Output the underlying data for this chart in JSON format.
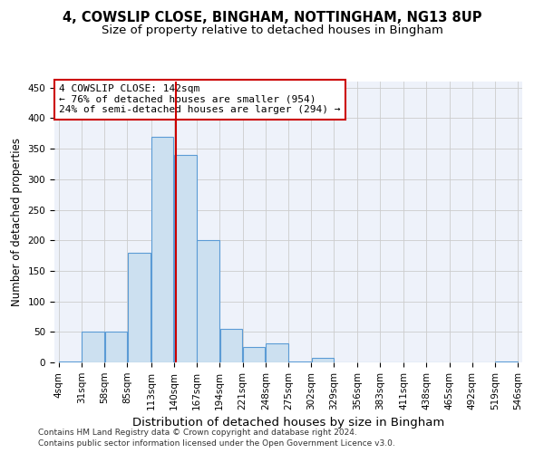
{
  "title_line1": "4, COWSLIP CLOSE, BINGHAM, NOTTINGHAM, NG13 8UP",
  "title_line2": "Size of property relative to detached houses in Bingham",
  "xlabel": "Distribution of detached houses by size in Bingham",
  "ylabel": "Number of detached properties",
  "bin_labels": [
    "4sqm",
    "31sqm",
    "58sqm",
    "85sqm",
    "113sqm",
    "140sqm",
    "167sqm",
    "194sqm",
    "221sqm",
    "248sqm",
    "275sqm",
    "302sqm",
    "329sqm",
    "356sqm",
    "383sqm",
    "411sqm",
    "438sqm",
    "465sqm",
    "492sqm",
    "519sqm",
    "546sqm"
  ],
  "bar_values": [
    2,
    50,
    50,
    180,
    370,
    340,
    200,
    55,
    25,
    31,
    2,
    7,
    0,
    0,
    0,
    0,
    0,
    0,
    0,
    2
  ],
  "bin_edges": [
    4,
    31,
    58,
    85,
    113,
    140,
    167,
    194,
    221,
    248,
    275,
    302,
    329,
    356,
    383,
    411,
    438,
    465,
    492,
    519,
    546
  ],
  "bar_facecolor": "#cce0f0",
  "bar_edgecolor": "#5b9bd5",
  "property_line_x": 142,
  "property_line_color": "#cc0000",
  "annotation_line1": "4 COWSLIP CLOSE: 142sqm",
  "annotation_line2": "← 76% of detached houses are smaller (954)",
  "annotation_line3": "24% of semi-detached houses are larger (294) →",
  "annotation_box_color": "#cc0000",
  "grid_color": "#cccccc",
  "background_color": "#eef2fa",
  "ylim": [
    0,
    460
  ],
  "yticks": [
    0,
    50,
    100,
    150,
    200,
    250,
    300,
    350,
    400,
    450
  ],
  "footnote1": "Contains HM Land Registry data © Crown copyright and database right 2024.",
  "footnote2": "Contains public sector information licensed under the Open Government Licence v3.0.",
  "title_fontsize": 10.5,
  "subtitle_fontsize": 9.5,
  "xlabel_fontsize": 9.5,
  "ylabel_fontsize": 8.5,
  "tick_fontsize": 7.5,
  "annot_fontsize": 8
}
